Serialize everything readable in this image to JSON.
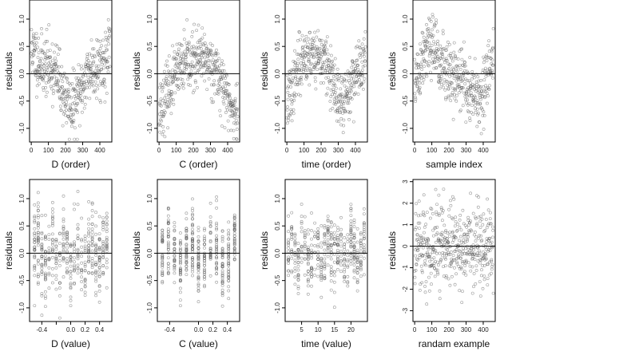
{
  "chart_data": [
    {
      "type": "scatter",
      "xlabel": "D (order)",
      "ylabel": "residuals",
      "xlim": [
        -10,
        470
      ],
      "ylim": [
        -1.25,
        1.35
      ],
      "xticks": [
        0,
        100,
        200,
        300,
        400
      ],
      "xtick_labels": [
        "0",
        "100",
        "200",
        "300",
        "400"
      ],
      "yticks": [
        -1.0,
        -0.5,
        0.0,
        0.5,
        1.0
      ],
      "ytick_labels": [
        "-1.0",
        "-0.5",
        "0.0",
        "0.5",
        "1.0"
      ],
      "gen": {
        "kind": "order",
        "fn": "d_order",
        "noise": 0.28,
        "n": 460,
        "seed": 11
      },
      "points": []
    },
    {
      "type": "scatter",
      "xlabel": "C (order)",
      "ylabel": "residuals",
      "xlim": [
        -10,
        470
      ],
      "ylim": [
        -1.25,
        1.35
      ],
      "xticks": [
        0,
        100,
        200,
        300,
        400
      ],
      "xtick_labels": [
        "0",
        "100",
        "200",
        "300",
        "400"
      ],
      "yticks": [
        -1.0,
        -0.5,
        0.0,
        0.5,
        1.0
      ],
      "ytick_labels": [
        "-1.0",
        "-0.5",
        "0.0",
        "0.5",
        "1.0"
      ],
      "gen": {
        "kind": "order",
        "fn": "c_order",
        "noise": 0.26,
        "n": 460,
        "seed": 23
      },
      "points": []
    },
    {
      "type": "scatter",
      "xlabel": "time (order)",
      "ylabel": "residuals",
      "xlim": [
        -10,
        470
      ],
      "ylim": [
        -1.25,
        1.35
      ],
      "xticks": [
        0,
        100,
        200,
        300,
        400
      ],
      "xtick_labels": [
        "0",
        "100",
        "200",
        "300",
        "400"
      ],
      "yticks": [
        -1.0,
        -0.5,
        0.0,
        0.5,
        1.0
      ],
      "ytick_labels": [
        "-1.0",
        "-0.5",
        "0.0",
        "0.5",
        "1.0"
      ],
      "gen": {
        "kind": "order",
        "fn": "t_order",
        "noise": 0.26,
        "n": 460,
        "seed": 37
      },
      "points": []
    },
    {
      "type": "scatter",
      "xlabel": "sample index",
      "ylabel": "residuals",
      "xlim": [
        -10,
        470
      ],
      "ylim": [
        -1.25,
        1.35
      ],
      "xticks": [
        0,
        100,
        200,
        300,
        400
      ],
      "xtick_labels": [
        "0",
        "100",
        "200",
        "300",
        "400"
      ],
      "yticks": [
        -1.0,
        -0.5,
        0.0,
        0.5,
        1.0
      ],
      "ytick_labels": [
        "-1.0",
        "-0.5",
        "0.0",
        "0.5",
        "1.0"
      ],
      "gen": {
        "kind": "order",
        "fn": "s_order",
        "noise": 0.3,
        "n": 460,
        "seed": 51
      },
      "points": []
    },
    {
      "type": "scatter",
      "xlabel": "D (value)",
      "ylabel": "residuals",
      "xlim": [
        -0.57,
        0.57
      ],
      "ylim": [
        -1.25,
        1.35
      ],
      "xticks": [
        -0.4,
        -0.2,
        0.0,
        0.2,
        0.4
      ],
      "xtick_labels": [
        "-0.4",
        "",
        "0.0",
        "0.2",
        "0.4"
      ],
      "yticks": [
        -1.0,
        -0.5,
        0.0,
        0.5,
        1.0
      ],
      "ytick_labels": [
        "-1.0",
        "-0.5",
        "0.0",
        "0.5",
        "1.0"
      ],
      "gen": {
        "kind": "value",
        "lo": -0.5,
        "hi": 0.5,
        "levels": 21,
        "noise": 0.33,
        "n": 460,
        "seed": 67
      },
      "points": []
    },
    {
      "type": "scatter",
      "xlabel": "C (value)",
      "ylabel": "residuals",
      "xlim": [
        -0.57,
        0.57
      ],
      "ylim": [
        -1.25,
        1.35
      ],
      "xticks": [
        -0.4,
        0.0,
        0.2,
        0.4
      ],
      "xtick_labels": [
        "-0.4",
        "0.0",
        "0.2",
        "0.4"
      ],
      "yticks": [
        -1.0,
        -0.5,
        0.0,
        0.5,
        1.0
      ],
      "ytick_labels": [
        "-1.0",
        "-0.5",
        "0.0",
        "0.5",
        "1.0"
      ],
      "gen": {
        "kind": "value",
        "lo": -0.5,
        "hi": 0.5,
        "levels": 13,
        "noise": 0.3,
        "n": 460,
        "seed": 79
      },
      "points": []
    },
    {
      "type": "scatter",
      "xlabel": "time (value)",
      "ylabel": "residuals",
      "xlim": [
        0,
        25
      ],
      "ylim": [
        -1.25,
        1.35
      ],
      "xticks": [
        5,
        10,
        15,
        20
      ],
      "xtick_labels": [
        "5",
        "10",
        "15",
        "20"
      ],
      "yticks": [
        -1.0,
        -0.5,
        0.0,
        0.5,
        1.0
      ],
      "ytick_labels": [
        "-1.0",
        "-0.5",
        "0.0",
        "0.5",
        "1.0"
      ],
      "gen": {
        "kind": "value",
        "lo": 1,
        "hi": 24,
        "levels": 24,
        "noise": 0.3,
        "n": 460,
        "seed": 91
      },
      "points": []
    },
    {
      "type": "scatter",
      "xlabel": "randam example",
      "ylabel": "residuals",
      "xlim": [
        -10,
        470
      ],
      "ylim": [
        -3.5,
        3.1
      ],
      "xticks": [
        0,
        100,
        200,
        300,
        400
      ],
      "xtick_labels": [
        "0",
        "100",
        "200",
        "300",
        "400"
      ],
      "yticks": [
        -3,
        -2,
        -1,
        0,
        1,
        2,
        3
      ],
      "ytick_labels": [
        "-3",
        "-2",
        "-1",
        "0",
        "1",
        "2",
        "3"
      ],
      "gen": {
        "kind": "random",
        "sd": 1.0,
        "n": 460,
        "seed": 103
      },
      "points": []
    }
  ]
}
